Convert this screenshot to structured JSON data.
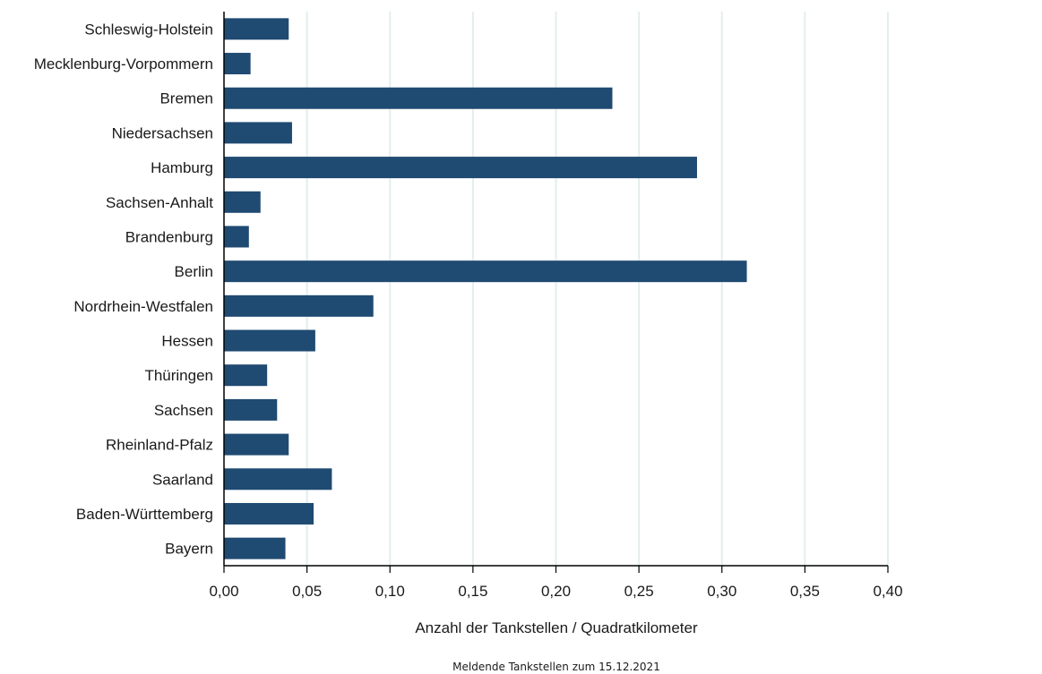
{
  "chart_data": {
    "type": "bar",
    "orientation": "horizontal",
    "categories": [
      "Schleswig-Holstein",
      "Mecklenburg-Vorpommern",
      "Bremen",
      "Niedersachsen",
      "Hamburg",
      "Sachsen-Anhalt",
      "Brandenburg",
      "Berlin",
      "Nordrhein-Westfalen",
      "Hessen",
      "Thüringen",
      "Sachsen",
      "Rheinland-Pfalz",
      "Saarland",
      "Baden-Württemberg",
      "Bayern"
    ],
    "values": [
      0.039,
      0.016,
      0.234,
      0.041,
      0.285,
      0.022,
      0.015,
      0.315,
      0.09,
      0.055,
      0.026,
      0.032,
      0.039,
      0.065,
      0.054,
      0.037
    ],
    "xlabel": "Anzahl der Tankstellen / Quadratkilometer",
    "ylabel": "",
    "xlim": [
      0,
      0.4
    ],
    "xticks": [
      "0,00",
      "0,05",
      "0,10",
      "0,15",
      "0,20",
      "0,25",
      "0,30",
      "0,35",
      "0,40"
    ],
    "xtick_values": [
      0,
      0.05,
      0.1,
      0.15,
      0.2,
      0.25,
      0.3,
      0.35,
      0.4
    ],
    "grid": "vertical",
    "bar_color": "#1f4a72",
    "grid_color": "#e3eeee",
    "note": "Meldende Tankstellen zum 15.12.2021"
  }
}
